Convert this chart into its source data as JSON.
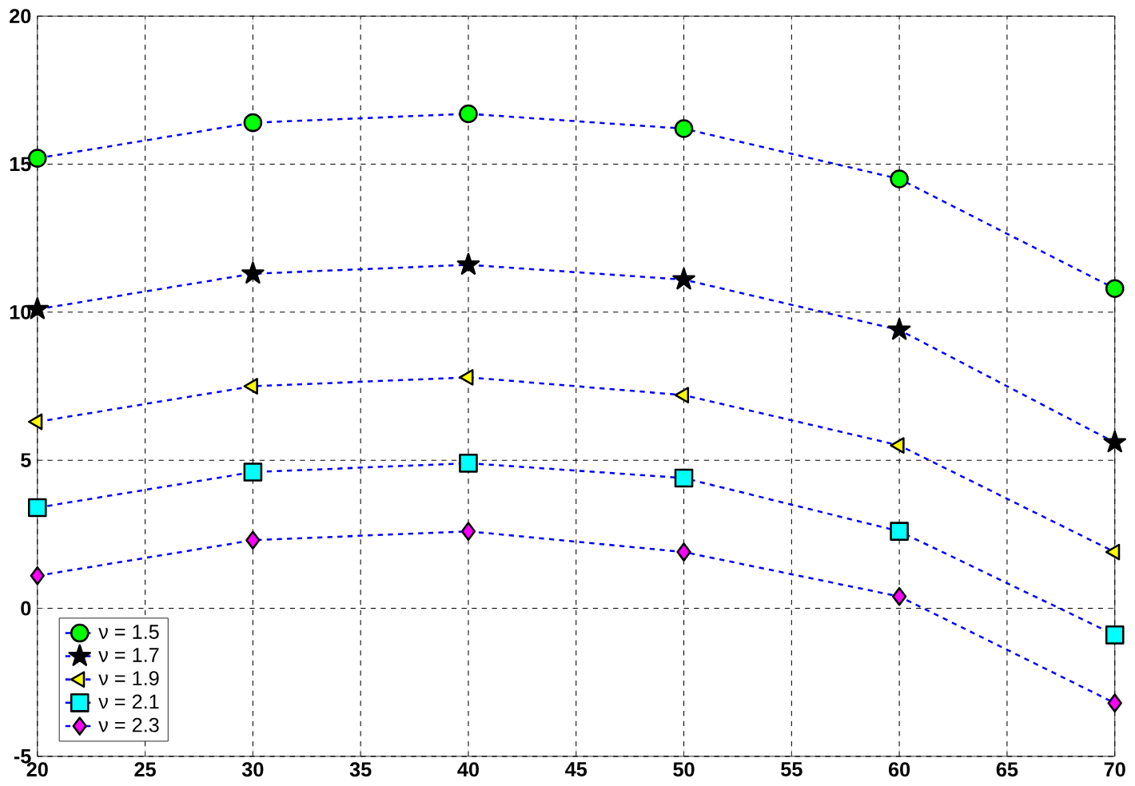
{
  "chart_data": {
    "type": "line",
    "x": [
      20,
      30,
      40,
      50,
      60,
      70
    ],
    "xlim": [
      20,
      70
    ],
    "xticks": [
      20,
      25,
      30,
      35,
      40,
      45,
      50,
      55,
      60,
      65,
      70
    ],
    "ylim": [
      -5,
      20
    ],
    "yticks": [
      -5,
      0,
      5,
      10,
      15,
      20
    ],
    "grid": true,
    "legend": "bottom left",
    "line_style": "dashed",
    "series": [
      {
        "name": "ν = 1.5",
        "color": "#00ff00",
        "marker": "circle",
        "values": [
          15.2,
          16.4,
          16.7,
          16.2,
          14.5,
          10.8
        ]
      },
      {
        "name": "ν = 1.7",
        "color": "#000000",
        "marker": "star",
        "values": [
          10.1,
          11.3,
          11.6,
          11.1,
          9.4,
          5.6
        ]
      },
      {
        "name": "ν = 1.9",
        "color": "#ffff00",
        "marker": "triangle",
        "values": [
          6.3,
          7.5,
          7.8,
          7.2,
          5.5,
          1.9
        ]
      },
      {
        "name": "ν = 2.1",
        "color": "#00ffff",
        "marker": "square",
        "values": [
          3.4,
          4.6,
          4.9,
          4.4,
          2.6,
          -0.9
        ]
      },
      {
        "name": "ν = 2.3",
        "color": "#ff00ff",
        "marker": "diamond",
        "values": [
          1.1,
          2.3,
          2.6,
          1.9,
          0.4,
          -3.2
        ]
      }
    ]
  }
}
